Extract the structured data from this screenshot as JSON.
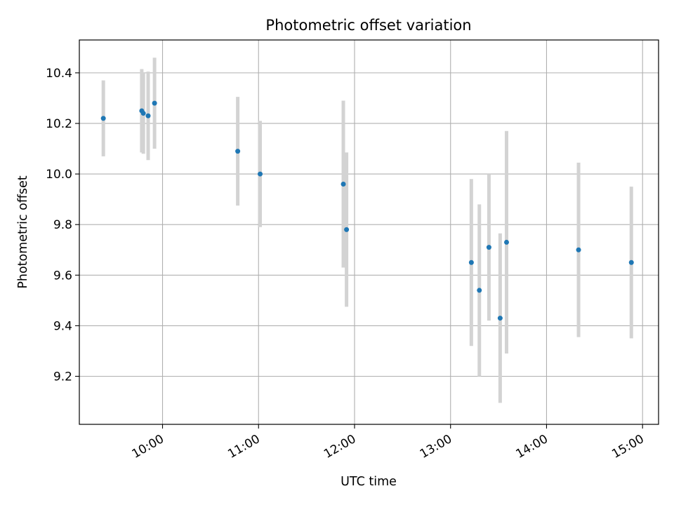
{
  "chart_data": {
    "type": "scatter",
    "title": "Photometric offset variation",
    "xlabel": "UTC time",
    "ylabel": "Photometric offset",
    "x_tick_labels": [
      "10:00",
      "11:00",
      "12:00",
      "13:00",
      "14:00",
      "15:00"
    ],
    "y_tick_labels": [
      "9.2",
      "9.4",
      "9.6",
      "9.8",
      "10.0",
      "10.2",
      "10.4"
    ],
    "xlim": [
      "09:08",
      "15:10"
    ],
    "ylim": [
      9.01,
      10.53
    ],
    "grid": true,
    "legend": "none",
    "points": [
      {
        "x": "09:23",
        "y": 10.22,
        "err": 0.15
      },
      {
        "x": "09:47",
        "y": 10.25,
        "err": 0.165
      },
      {
        "x": "09:48",
        "y": 10.24,
        "err": 0.16
      },
      {
        "x": "09:51",
        "y": 10.23,
        "err": 0.175
      },
      {
        "x": "09:55",
        "y": 10.28,
        "err": 0.18
      },
      {
        "x": "10:47",
        "y": 10.09,
        "err": 0.215
      },
      {
        "x": "11:01",
        "y": 10.0,
        "err": 0.21
      },
      {
        "x": "11:53",
        "y": 9.96,
        "err": 0.33
      },
      {
        "x": "11:55",
        "y": 9.78,
        "err": 0.305
      },
      {
        "x": "13:13",
        "y": 9.65,
        "err": 0.33
      },
      {
        "x": "13:18",
        "y": 9.54,
        "err": 0.34
      },
      {
        "x": "13:24",
        "y": 9.71,
        "err": 0.29
      },
      {
        "x": "13:31",
        "y": 9.43,
        "err": 0.335
      },
      {
        "x": "13:35",
        "y": 9.73,
        "err": 0.44
      },
      {
        "x": "14:20",
        "y": 9.7,
        "err": 0.345
      },
      {
        "x": "14:53",
        "y": 9.65,
        "err": 0.3
      }
    ],
    "colors": {
      "marker": "#1f77b4",
      "errorbar": "#d3d3d3",
      "grid": "#b0b0b0",
      "axes": "#000000"
    }
  }
}
